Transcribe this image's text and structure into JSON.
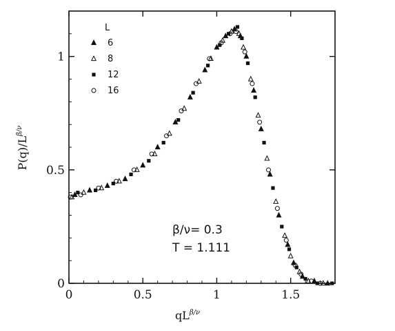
{
  "chart_data": {
    "type": "scatter",
    "xlabel": "qL",
    "xlabel_sup": "β/ν",
    "ylabel": "P(q)/L",
    "ylabel_sup": "β/ν",
    "xlim": [
      0,
      1.8
    ],
    "ylim": [
      0,
      1.2
    ],
    "x_ticks": [
      0,
      0.5,
      1,
      1.5
    ],
    "x_tick_labels": [
      "0",
      "0.5",
      "1",
      "1.5"
    ],
    "y_ticks": [
      0,
      0.5,
      1
    ],
    "y_tick_labels": [
      "0",
      "0.5",
      "1"
    ],
    "grid": false,
    "legend_title": "L",
    "legend_position": "top-left",
    "annotations": [
      "β/ν= 0.3",
      "T = 1.111"
    ],
    "series": [
      {
        "name": "6",
        "marker": "triangle-filled",
        "x": [
          0.04,
          0.14,
          0.26,
          0.38,
          0.5,
          0.6,
          0.72,
          0.82,
          0.92,
          1.0,
          1.06,
          1.12,
          1.16,
          1.2,
          1.25,
          1.3,
          1.36,
          1.42,
          1.48,
          1.52,
          1.58,
          1.66,
          1.75
        ],
        "y": [
          0.39,
          0.41,
          0.43,
          0.46,
          0.52,
          0.6,
          0.71,
          0.82,
          0.94,
          1.04,
          1.09,
          1.12,
          1.09,
          1.0,
          0.85,
          0.68,
          0.48,
          0.3,
          0.17,
          0.09,
          0.03,
          0.01,
          0.0
        ]
      },
      {
        "name": "8",
        "marker": "triangle-open",
        "x": [
          0.02,
          0.1,
          0.22,
          0.34,
          0.46,
          0.58,
          0.68,
          0.78,
          0.88,
          0.96,
          1.04,
          1.1,
          1.15,
          1.18,
          1.23,
          1.28,
          1.34,
          1.4,
          1.46,
          1.5,
          1.56,
          1.62,
          1.72
        ],
        "y": [
          0.38,
          0.4,
          0.42,
          0.45,
          0.5,
          0.57,
          0.66,
          0.77,
          0.89,
          0.99,
          1.07,
          1.11,
          1.1,
          1.04,
          0.9,
          0.74,
          0.55,
          0.36,
          0.21,
          0.12,
          0.05,
          0.01,
          0.0
        ]
      },
      {
        "name": "12",
        "marker": "square-filled",
        "x": [
          0.06,
          0.18,
          0.3,
          0.42,
          0.54,
          0.64,
          0.74,
          0.84,
          0.94,
          1.02,
          1.08,
          1.14,
          1.17,
          1.21,
          1.26,
          1.32,
          1.38,
          1.44,
          1.49,
          1.54,
          1.6,
          1.68,
          1.78
        ],
        "y": [
          0.4,
          0.41,
          0.44,
          0.48,
          0.54,
          0.62,
          0.72,
          0.84,
          0.96,
          1.05,
          1.1,
          1.13,
          1.08,
          0.97,
          0.82,
          0.62,
          0.42,
          0.25,
          0.15,
          0.07,
          0.02,
          0.0,
          0.0
        ]
      },
      {
        "name": "16",
        "marker": "circle-open",
        "x": [
          0.01,
          0.08,
          0.2,
          0.32,
          0.44,
          0.56,
          0.66,
          0.76,
          0.86,
          0.95,
          1.03,
          1.09,
          1.13,
          1.19,
          1.24,
          1.29,
          1.35,
          1.41,
          1.47,
          1.53,
          1.57,
          1.64,
          1.7
        ],
        "y": [
          0.38,
          0.39,
          0.42,
          0.45,
          0.5,
          0.57,
          0.65,
          0.76,
          0.88,
          0.99,
          1.06,
          1.1,
          1.11,
          1.02,
          0.88,
          0.71,
          0.5,
          0.33,
          0.19,
          0.08,
          0.04,
          0.01,
          0.0
        ]
      }
    ]
  }
}
